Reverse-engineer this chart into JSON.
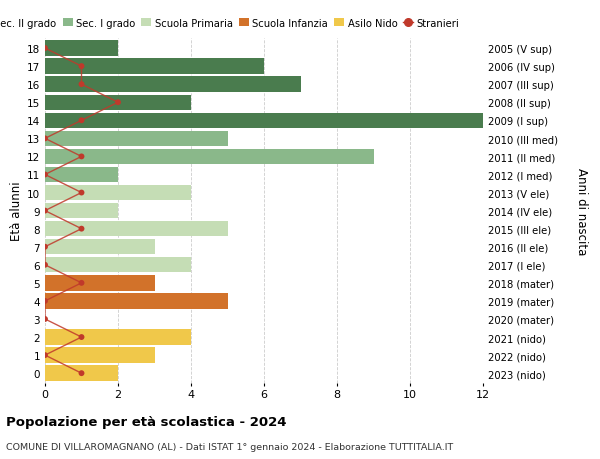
{
  "ages": [
    18,
    17,
    16,
    15,
    14,
    13,
    12,
    11,
    10,
    9,
    8,
    7,
    6,
    5,
    4,
    3,
    2,
    1,
    0
  ],
  "right_labels": [
    "2005 (V sup)",
    "2006 (IV sup)",
    "2007 (III sup)",
    "2008 (II sup)",
    "2009 (I sup)",
    "2010 (III med)",
    "2011 (II med)",
    "2012 (I med)",
    "2013 (V ele)",
    "2014 (IV ele)",
    "2015 (III ele)",
    "2016 (II ele)",
    "2017 (I ele)",
    "2018 (mater)",
    "2019 (mater)",
    "2020 (mater)",
    "2021 (nido)",
    "2022 (nido)",
    "2023 (nido)"
  ],
  "bar_values": [
    2,
    6,
    7,
    4,
    12,
    5,
    9,
    2,
    4,
    2,
    5,
    3,
    4,
    3,
    5,
    0,
    4,
    3,
    2
  ],
  "bar_colors": [
    "#4a7c4e",
    "#4a7c4e",
    "#4a7c4e",
    "#4a7c4e",
    "#4a7c4e",
    "#8ab88a",
    "#8ab88a",
    "#8ab88a",
    "#c5ddb5",
    "#c5ddb5",
    "#c5ddb5",
    "#c5ddb5",
    "#c5ddb5",
    "#d2722a",
    "#d2722a",
    "#d2722a",
    "#f0c84a",
    "#f0c84a",
    "#f0c84a"
  ],
  "stranieri_values": [
    0,
    1,
    1,
    2,
    1,
    0,
    1,
    0,
    1,
    0,
    1,
    0,
    0,
    1,
    0,
    0,
    1,
    0,
    1
  ],
  "stranieri_color": "#c0392b",
  "title_bold": "Popolazione per età scolastica - 2024",
  "subtitle": "COMUNE DI VILLAROMAGNANO (AL) - Dati ISTAT 1° gennaio 2024 - Elaborazione TUTTITALIA.IT",
  "ylabel_left": "Età alunni",
  "ylabel_right": "Anni di nascita",
  "xlim": [
    0,
    12
  ],
  "xticks": [
    0,
    2,
    4,
    6,
    8,
    10,
    12
  ],
  "legend_labels": [
    "Sec. II grado",
    "Sec. I grado",
    "Scuola Primaria",
    "Scuola Infanzia",
    "Asilo Nido",
    "Stranieri"
  ],
  "legend_colors": [
    "#4a7c4e",
    "#8ab88a",
    "#c5ddb5",
    "#d2722a",
    "#f0c84a",
    "#c0392b"
  ],
  "background_color": "#ffffff",
  "grid_color": "#cccccc"
}
